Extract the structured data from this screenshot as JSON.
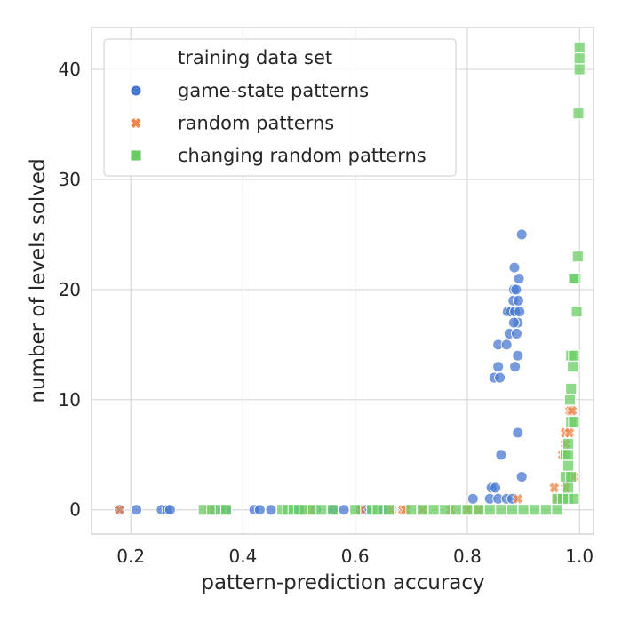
{
  "chart_data": {
    "type": "scatter",
    "xlabel": "pattern-prediction accuracy",
    "ylabel": "number of levels solved",
    "xlim": [
      0.13,
      1.025
    ],
    "ylim": [
      -2.2,
      43.8
    ],
    "xticks": [
      0.2,
      0.4,
      0.6,
      0.8,
      1.0
    ],
    "xtick_labels": [
      "0.2",
      "0.4",
      "0.6",
      "0.8",
      "1.0"
    ],
    "yticks": [
      0,
      10,
      20,
      30,
      40
    ],
    "ytick_labels": [
      "0",
      "10",
      "20",
      "30",
      "40"
    ],
    "grid": true,
    "legend": {
      "title": "training data set",
      "placement": "top-left"
    },
    "series": [
      {
        "name": "game-state patterns",
        "marker": "circle",
        "color": "#4878d0",
        "points": [
          [
            0.18,
            0
          ],
          [
            0.21,
            0
          ],
          [
            0.255,
            0
          ],
          [
            0.265,
            0
          ],
          [
            0.27,
            0
          ],
          [
            0.35,
            0
          ],
          [
            0.37,
            0
          ],
          [
            0.42,
            0
          ],
          [
            0.43,
            0
          ],
          [
            0.45,
            0
          ],
          [
            0.5,
            0
          ],
          [
            0.53,
            0
          ],
          [
            0.56,
            0
          ],
          [
            0.58,
            0
          ],
          [
            0.61,
            0
          ],
          [
            0.62,
            0
          ],
          [
            0.65,
            0
          ],
          [
            0.81,
            1
          ],
          [
            0.84,
            1
          ],
          [
            0.843,
            2
          ],
          [
            0.85,
            2
          ],
          [
            0.855,
            1
          ],
          [
            0.87,
            1
          ],
          [
            0.88,
            1
          ],
          [
            0.86,
            5
          ],
          [
            0.89,
            7
          ],
          [
            0.897,
            3
          ],
          [
            0.848,
            12
          ],
          [
            0.858,
            12
          ],
          [
            0.855,
            13
          ],
          [
            0.885,
            13
          ],
          [
            0.89,
            14
          ],
          [
            0.855,
            15
          ],
          [
            0.87,
            15
          ],
          [
            0.875,
            16
          ],
          [
            0.888,
            16
          ],
          [
            0.89,
            17
          ],
          [
            0.883,
            17
          ],
          [
            0.872,
            18
          ],
          [
            0.878,
            18
          ],
          [
            0.885,
            18
          ],
          [
            0.893,
            18
          ],
          [
            0.882,
            19
          ],
          [
            0.891,
            19
          ],
          [
            0.883,
            20
          ],
          [
            0.887,
            20
          ],
          [
            0.892,
            21
          ],
          [
            0.884,
            22
          ],
          [
            0.897,
            25
          ]
        ]
      },
      {
        "name": "random patterns",
        "marker": "x",
        "color": "#ee854a",
        "points": [
          [
            0.18,
            0
          ],
          [
            0.34,
            0
          ],
          [
            0.515,
            0
          ],
          [
            0.52,
            0
          ],
          [
            0.61,
            0
          ],
          [
            0.665,
            0
          ],
          [
            0.685,
            0
          ],
          [
            0.69,
            0
          ],
          [
            0.72,
            0
          ],
          [
            0.77,
            0
          ],
          [
            0.8,
            0
          ],
          [
            0.82,
            0
          ],
          [
            0.89,
            1
          ],
          [
            0.96,
            1
          ],
          [
            0.955,
            2
          ],
          [
            0.975,
            2
          ],
          [
            0.97,
            5
          ],
          [
            0.975,
            6
          ],
          [
            0.975,
            7
          ],
          [
            0.982,
            7
          ],
          [
            0.983,
            9
          ],
          [
            0.987,
            9
          ],
          [
            0.99,
            3
          ]
        ]
      },
      {
        "name": "changing random patterns",
        "marker": "square",
        "color": "#6acc64",
        "points": [
          [
            0.33,
            0
          ],
          [
            0.345,
            0
          ],
          [
            0.36,
            0
          ],
          [
            0.37,
            0
          ],
          [
            0.47,
            0
          ],
          [
            0.48,
            0
          ],
          [
            0.49,
            0
          ],
          [
            0.5,
            0
          ],
          [
            0.51,
            0
          ],
          [
            0.525,
            0
          ],
          [
            0.54,
            0
          ],
          [
            0.56,
            0
          ],
          [
            0.6,
            0
          ],
          [
            0.63,
            0
          ],
          [
            0.64,
            0
          ],
          [
            0.66,
            0
          ],
          [
            0.7,
            0
          ],
          [
            0.72,
            0
          ],
          [
            0.74,
            0
          ],
          [
            0.76,
            0
          ],
          [
            0.78,
            0
          ],
          [
            0.8,
            0
          ],
          [
            0.82,
            0
          ],
          [
            0.84,
            0
          ],
          [
            0.86,
            0
          ],
          [
            0.88,
            0
          ],
          [
            0.9,
            0
          ],
          [
            0.92,
            0
          ],
          [
            0.94,
            0
          ],
          [
            0.96,
            0
          ],
          [
            0.96,
            1
          ],
          [
            0.97,
            1
          ],
          [
            0.98,
            1
          ],
          [
            0.99,
            1
          ],
          [
            0.98,
            2
          ],
          [
            0.975,
            3
          ],
          [
            0.985,
            3
          ],
          [
            0.98,
            4
          ],
          [
            0.975,
            5
          ],
          [
            0.98,
            5
          ],
          [
            0.98,
            6
          ],
          [
            0.985,
            8
          ],
          [
            0.99,
            8
          ],
          [
            0.983,
            10
          ],
          [
            0.985,
            11
          ],
          [
            0.988,
            13
          ],
          [
            0.985,
            14
          ],
          [
            0.99,
            14
          ],
          [
            0.995,
            18
          ],
          [
            0.993,
            21
          ],
          [
            0.99,
            21
          ],
          [
            0.997,
            23
          ],
          [
            0.998,
            36
          ],
          [
            1.0,
            40
          ],
          [
            1.0,
            41
          ],
          [
            1.0,
            42
          ]
        ]
      }
    ]
  }
}
